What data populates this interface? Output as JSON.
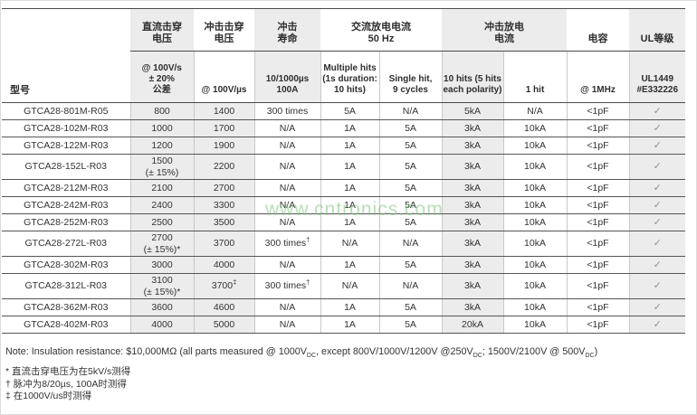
{
  "watermark": "www.cntronics.com",
  "table": {
    "model_header": "型号",
    "groups": {
      "dc_breakdown": "直流击穿\n电压",
      "impulse_breakdown": "冲击击穿\n电压",
      "impulse_life": "冲击\n寿命",
      "ac_discharge": "交流放电电流\n50 Hz",
      "impulse_discharge": "冲击放电\n电流",
      "capacitance": "电容",
      "ul_rating": "UL等级"
    },
    "sub_headers": {
      "dc_cond": "@ 100V/s\n± 20%\n公差",
      "impulse_cond": "@ 100V/µs",
      "life_cond": "10/1000µs\n100A",
      "multiple_hits": "Multiple hits\n(1s duration:\n10 hits)",
      "single_hit": "Single hit,\n9 cycles",
      "ten_hits": "10 hits (5 hits\neach polarity)",
      "one_hit": "1 hit",
      "cap_cond": "@ 1MHz",
      "ul_file": "UL1449\n#E332226"
    },
    "rows": [
      [
        "GTCA28-801M-R05",
        "800",
        "1400",
        "300 times",
        "5A",
        "N/A",
        "5kA",
        "N/A",
        "<1pF",
        "✓"
      ],
      [
        "GTCA28-102M-R03",
        "1000",
        "1700",
        "N/A",
        "1A",
        "5A",
        "3kA",
        "10kA",
        "<1pF",
        "✓"
      ],
      [
        "GTCA28-122M-R03",
        "1200",
        "1900",
        "N/A",
        "1A",
        "5A",
        "3kA",
        "10kA",
        "<1pF",
        "✓"
      ],
      [
        "GTCA28-152L-R03",
        "1500\n(± 15%)",
        "2200",
        "N/A",
        "1A",
        "5A",
        "3kA",
        "10kA",
        "<1pF",
        "✓"
      ],
      [
        "GTCA28-212M-R03",
        "2100",
        "2700",
        "N/A",
        "1A",
        "5A",
        "3kA",
        "10kA",
        "<1pF",
        "✓"
      ],
      [
        "GTCA28-242M-R03",
        "2400",
        "3300",
        "N/A",
        "1A",
        "5A",
        "3kA",
        "10kA",
        "<1pF",
        "✓"
      ],
      [
        "GTCA28-252M-R03",
        "2500",
        "3500",
        "N/A",
        "1A",
        "5A",
        "3kA",
        "10kA",
        "<1pF",
        "✓"
      ],
      [
        "GTCA28-272L-R03",
        "2700\n(± 15%)*",
        "3700",
        "300 times†",
        "N/A",
        "N/A",
        "3kA",
        "10kA",
        "<1pF",
        "✓"
      ],
      [
        "GTCA28-302M-R03",
        "3000",
        "4000",
        "N/A",
        "1A",
        "5A",
        "3kA",
        "10kA",
        "<1pF",
        "✓"
      ],
      [
        "GTCA28-312L-R03",
        "3100\n(± 15%)*",
        "3700‡",
        "300 times†",
        "N/A",
        "N/A",
        "3kA",
        "10kA",
        "<1pF",
        "✓"
      ],
      [
        "GTCA28-362M-R03",
        "3600",
        "4600",
        "N/A",
        "1A",
        "5A",
        "3kA",
        "10kA",
        "<1pF",
        "✓"
      ],
      [
        "GTCA28-402M-R03",
        "4000",
        "5000",
        "N/A",
        "1A",
        "5A",
        "20kA",
        "10kA",
        "<1pF",
        "✓"
      ]
    ],
    "shaded_columns": [
      1,
      2,
      6,
      9
    ]
  },
  "notes": {
    "main_segments": [
      {
        "t": "Note: Insulation resistance: $10,000MΩ (all parts measured @ 1000V"
      },
      {
        "t": "DC",
        "sub": true
      },
      {
        "t": ", except 800V/1000V/1200V @250V"
      },
      {
        "t": "DC",
        "sub": true
      },
      {
        "t": "; 1500V/2100V @ 500V"
      },
      {
        "t": "DC",
        "sub": true
      },
      {
        "t": ")"
      }
    ],
    "footnotes": [
      "* 直流击穿电压为在5kV/s测得",
      "† 脉冲为8/20µs, 100A时测得",
      "‡ 在1000V/us时测得"
    ]
  },
  "colors": {
    "column_shade": "#ececec",
    "row_line": "#555555",
    "header_line": "#4a4a4a",
    "check_mark": "#8f8f8f",
    "watermark_green": "#7dc37d"
  }
}
